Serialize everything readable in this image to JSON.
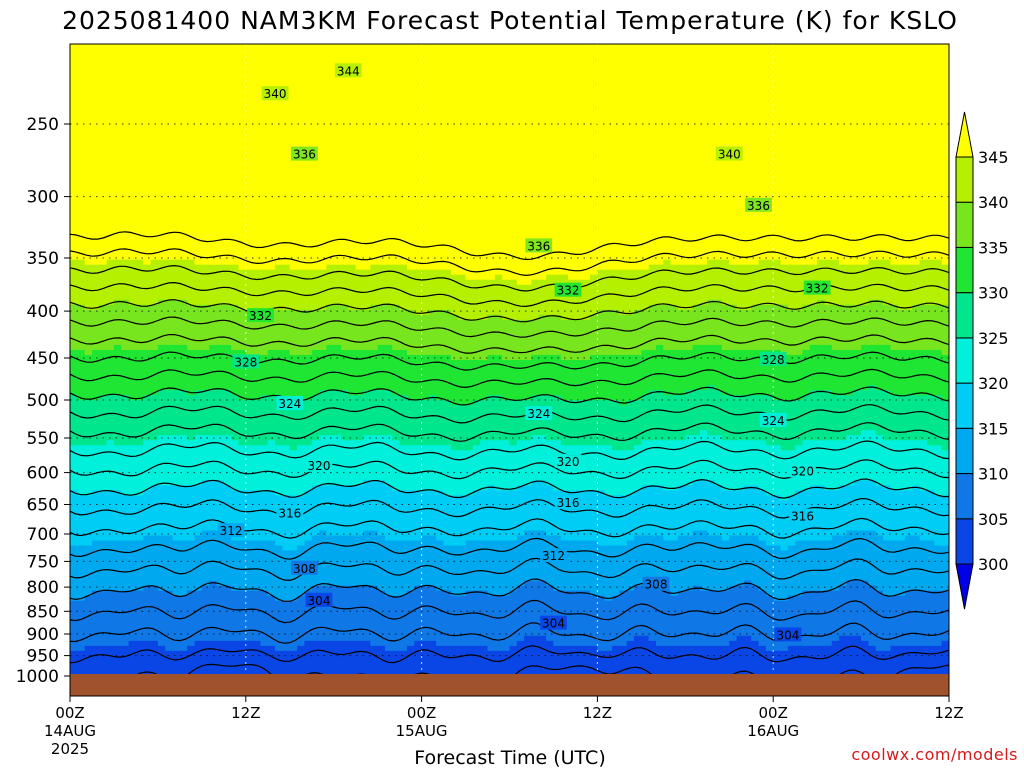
{
  "chart_data": {
    "type": "heatmap",
    "title": "2025081400 NAM3KM Forecast Potential Temperature (K) for KSLO",
    "xlabel": "Forecast Time (UTC)",
    "ylabel": "",
    "y_scale": "log",
    "y_inverted": true,
    "y_ticks": [
      250,
      300,
      350,
      400,
      450,
      500,
      550,
      600,
      650,
      700,
      750,
      800,
      850,
      900,
      950,
      1000
    ],
    "ylim": [
      1000,
      200
    ],
    "xlim": [
      0,
      60
    ],
    "x_ticks": [
      {
        "hour": 0,
        "label": "00Z",
        "sub": "14AUG",
        "sub2": "2025"
      },
      {
        "hour": 12,
        "label": "12Z",
        "sub": "",
        "sub2": ""
      },
      {
        "hour": 24,
        "label": "00Z",
        "sub": "15AUG",
        "sub2": ""
      },
      {
        "hour": 36,
        "label": "12Z",
        "sub": "",
        "sub2": ""
      },
      {
        "hour": 48,
        "label": "00Z",
        "sub": "16AUG",
        "sub2": ""
      },
      {
        "hour": 60,
        "label": "12Z",
        "sub": "",
        "sub2": ""
      }
    ],
    "grid": true,
    "ground_color": "#a0522d",
    "contour_interval": 2,
    "colorbar": {
      "ticks": [
        300,
        305,
        310,
        315,
        320,
        325,
        330,
        335,
        340,
        345
      ],
      "colors": [
        "#0000e6",
        "#0a46e6",
        "#0f78e6",
        "#00a8f0",
        "#00cdf5",
        "#00f0dc",
        "#00e68c",
        "#1ee632",
        "#78e61e",
        "#b4f000",
        "#ffff00"
      ],
      "extend": "both"
    },
    "contour_labels": [
      {
        "value": "344",
        "hour": 19,
        "p": 219
      },
      {
        "value": "340",
        "hour": 14,
        "p": 232
      },
      {
        "value": "340",
        "hour": 45,
        "p": 270
      },
      {
        "value": "336",
        "hour": 16,
        "p": 270
      },
      {
        "value": "336",
        "hour": 47,
        "p": 307
      },
      {
        "value": "336",
        "hour": 32,
        "p": 340
      },
      {
        "value": "332",
        "hour": 13,
        "p": 405
      },
      {
        "value": "332",
        "hour": 34,
        "p": 380
      },
      {
        "value": "332",
        "hour": 51,
        "p": 378
      },
      {
        "value": "328",
        "hour": 12,
        "p": 455
      },
      {
        "value": "328",
        "hour": 48,
        "p": 452
      },
      {
        "value": "324",
        "hour": 15,
        "p": 505
      },
      {
        "value": "324",
        "hour": 32,
        "p": 518
      },
      {
        "value": "324",
        "hour": 48,
        "p": 527
      },
      {
        "value": "320",
        "hour": 17,
        "p": 590
      },
      {
        "value": "320",
        "hour": 34,
        "p": 584
      },
      {
        "value": "320",
        "hour": 50,
        "p": 598
      },
      {
        "value": "316",
        "hour": 15,
        "p": 665
      },
      {
        "value": "316",
        "hour": 34,
        "p": 648
      },
      {
        "value": "316",
        "hour": 50,
        "p": 670
      },
      {
        "value": "312",
        "hour": 11,
        "p": 695
      },
      {
        "value": "312",
        "hour": 33,
        "p": 740
      },
      {
        "value": "308",
        "hour": 16,
        "p": 764
      },
      {
        "value": "308",
        "hour": 40,
        "p": 795
      },
      {
        "value": "304",
        "hour": 17,
        "p": 828
      },
      {
        "value": "304",
        "hour": 33,
        "p": 877
      },
      {
        "value": "304",
        "hour": 49,
        "p": 903
      }
    ]
  },
  "credit": "coolwx.com/models"
}
